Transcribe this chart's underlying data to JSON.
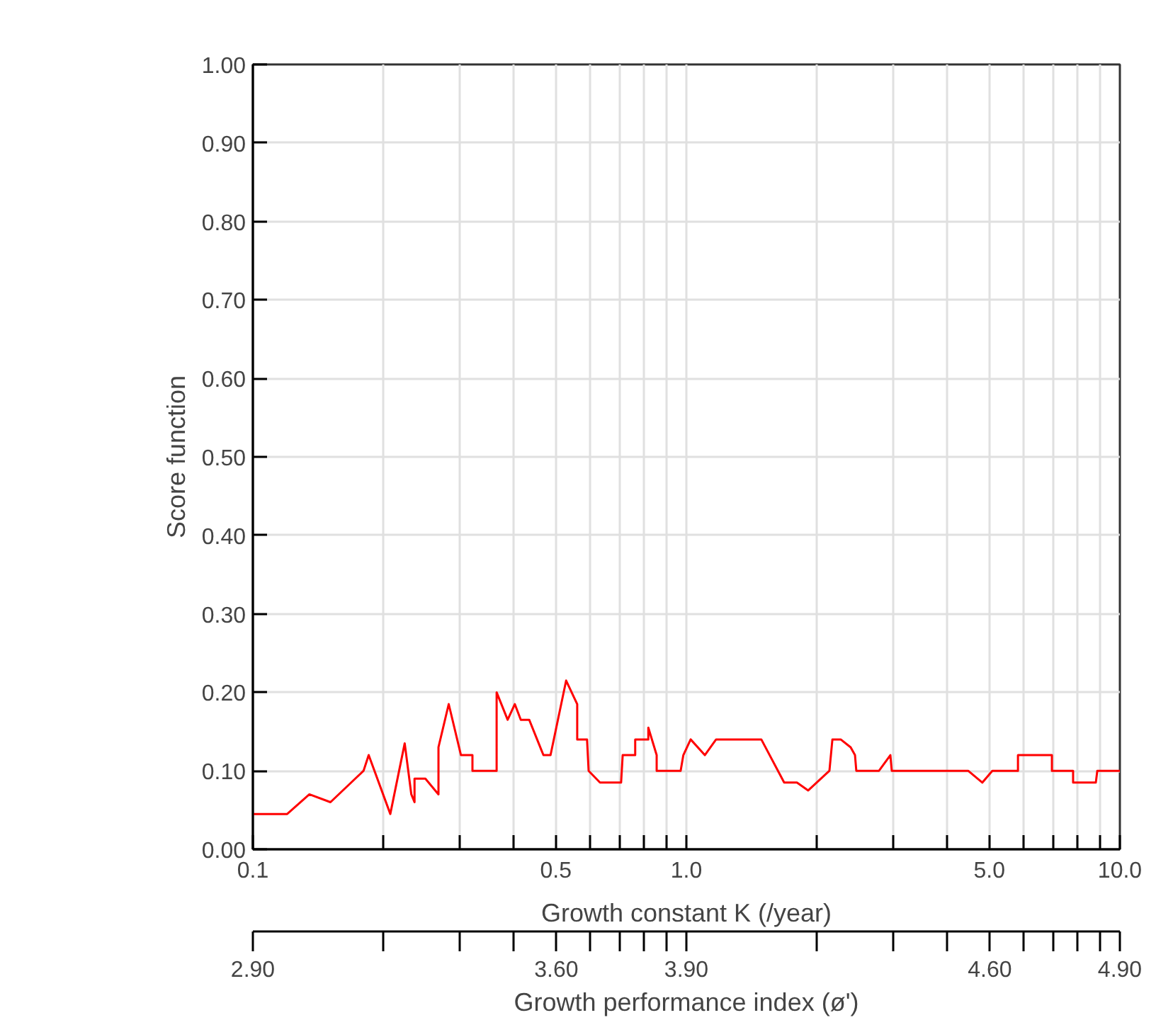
{
  "chart_data": {
    "type": "line",
    "xlabel": "Growth constant K (/year)",
    "ylabel": "Score function",
    "x2label": "Growth performance index (ø')",
    "log": "x",
    "grid": true,
    "marker": "none",
    "line_style": "solid",
    "xlim": [
      0.1,
      10
    ],
    "ylim": [
      0,
      1
    ],
    "xticks": [
      {
        "value": 0.1,
        "label": "0.1"
      },
      {
        "value": 0.2,
        "label": null
      },
      {
        "value": 0.3,
        "label": null
      },
      {
        "value": 0.4,
        "label": null
      },
      {
        "value": 0.5,
        "label": "0.5"
      },
      {
        "value": 0.6,
        "label": null
      },
      {
        "value": 0.7,
        "label": null
      },
      {
        "value": 0.8,
        "label": null
      },
      {
        "value": 0.9,
        "label": null
      },
      {
        "value": 1,
        "label": "1.0"
      },
      {
        "value": 2,
        "label": null
      },
      {
        "value": 3,
        "label": null
      },
      {
        "value": 4,
        "label": null
      },
      {
        "value": 5,
        "label": "5.0"
      },
      {
        "value": 6,
        "label": null
      },
      {
        "value": 7,
        "label": null
      },
      {
        "value": 8,
        "label": null
      },
      {
        "value": 9,
        "label": null
      },
      {
        "value": 10,
        "label": "10.0"
      }
    ],
    "yticks": [
      {
        "value": 0,
        "label": "0.00"
      },
      {
        "value": 0.1,
        "label": "0.10"
      },
      {
        "value": 0.2,
        "label": "0.20"
      },
      {
        "value": 0.3,
        "label": "0.30"
      },
      {
        "value": 0.4,
        "label": "0.40"
      },
      {
        "value": 0.5,
        "label": "0.50"
      },
      {
        "value": 0.6,
        "label": "0.60"
      },
      {
        "value": 0.7,
        "label": "0.70"
      },
      {
        "value": 0.8,
        "label": "0.80"
      },
      {
        "value": 0.9,
        "label": "0.90"
      },
      {
        "value": 1,
        "label": "1.00"
      }
    ],
    "x2lim": [
      2.9,
      4.9
    ],
    "x2ticks": [
      {
        "value": 2.9,
        "label": "2.90"
      },
      {
        "value": 3.201,
        "label": null
      },
      {
        "value": 3.377,
        "label": null
      },
      {
        "value": 3.502,
        "label": null
      },
      {
        "value": 3.6,
        "label": "3.60"
      },
      {
        "value": 3.678,
        "label": null
      },
      {
        "value": 3.745,
        "label": null
      },
      {
        "value": 3.803,
        "label": null
      },
      {
        "value": 3.854,
        "label": null
      },
      {
        "value": 3.9,
        "label": "3.90"
      },
      {
        "value": 4.201,
        "label": null
      },
      {
        "value": 4.377,
        "label": null
      },
      {
        "value": 4.502,
        "label": null
      },
      {
        "value": 4.6,
        "label": "4.60"
      },
      {
        "value": 4.678,
        "label": null
      },
      {
        "value": 4.745,
        "label": null
      },
      {
        "value": 4.803,
        "label": null
      },
      {
        "value": 4.854,
        "label": null
      },
      {
        "value": 4.9,
        "label": "4.90"
      }
    ],
    "series": [
      {
        "color": "#ff0000",
        "x": [
          0.1,
          0.12,
          0.135,
          0.151,
          0.18,
          0.185,
          0.2075,
          0.224,
          0.232,
          0.236,
          0.236,
          0.25,
          0.268,
          0.268,
          0.283,
          0.302,
          0.321,
          0.321,
          0.365,
          0.365,
          0.387,
          0.402,
          0.415,
          0.434,
          0.468,
          0.486,
          0.528,
          0.56,
          0.56,
          0.59,
          0.595,
          0.632,
          0.707,
          0.713,
          0.762,
          0.762,
          0.817,
          0.817,
          0.854,
          0.854,
          0.97,
          0.984,
          1.023,
          1.103,
          1.171,
          1.489,
          1.681,
          1.799,
          1.91,
          2.138,
          2.172,
          2.27,
          2.393,
          2.449,
          2.466,
          2.782,
          2.955,
          2.977,
          4.467,
          4.817,
          5.079,
          5.82,
          5.82,
          6.97,
          6.97,
          7.8,
          7.8,
          8.8,
          8.87,
          10
        ],
        "values": [
          0.045,
          0.045,
          0.07,
          0.06,
          0.1,
          0.12,
          0.045,
          0.135,
          0.07,
          0.06,
          0.09,
          0.09,
          0.07,
          0.13,
          0.185,
          0.12,
          0.12,
          0.1,
          0.1,
          0.2,
          0.165,
          0.185,
          0.165,
          0.165,
          0.12,
          0.12,
          0.215,
          0.185,
          0.14,
          0.14,
          0.1,
          0.085,
          0.085,
          0.12,
          0.12,
          0.14,
          0.14,
          0.155,
          0.12,
          0.1,
          0.1,
          0.12,
          0.14,
          0.12,
          0.14,
          0.14,
          0.085,
          0.085,
          0.075,
          0.1,
          0.14,
          0.14,
          0.13,
          0.12,
          0.1,
          0.1,
          0.12,
          0.1,
          0.1,
          0.085,
          0.1,
          0.1,
          0.12,
          0.12,
          0.1,
          0.1,
          0.085,
          0.085,
          0.1,
          0.1
        ]
      }
    ]
  }
}
